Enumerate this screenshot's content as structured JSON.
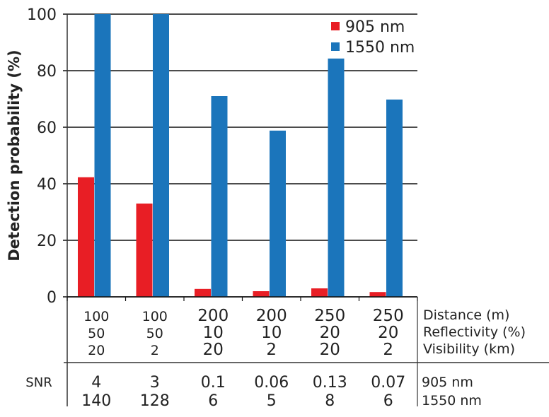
{
  "chart_data": {
    "type": "bar",
    "ylabel": "Detection probability (%)",
    "ylim": [
      0,
      100
    ],
    "yticks": [
      "0",
      "20",
      "40",
      "60",
      "80",
      "100"
    ],
    "grid": true,
    "legend_position": "top-right",
    "categories": [
      {
        "distance": "100",
        "reflectivity": "50",
        "visibility": "20"
      },
      {
        "distance": "100",
        "reflectivity": "50",
        "visibility": "2"
      },
      {
        "distance": "200",
        "reflectivity": "10",
        "visibility": "20"
      },
      {
        "distance": "200",
        "reflectivity": "10",
        "visibility": "2"
      },
      {
        "distance": "250",
        "reflectivity": "20",
        "visibility": "20"
      },
      {
        "distance": "250",
        "reflectivity": "20",
        "visibility": "2"
      }
    ],
    "row_labels": {
      "distance": "Distance (m)",
      "reflectivity": "Reflectivity (%)",
      "visibility": "Visibility (km)"
    },
    "series": [
      {
        "name": "905 nm",
        "color": "#e81e25",
        "values": [
          42.3,
          33,
          2.8,
          2,
          3,
          1.7
        ]
      },
      {
        "name": "1550 nm",
        "color": "#1b75bb",
        "values": [
          100,
          100,
          71,
          58.8,
          84.3,
          69.8
        ]
      }
    ],
    "snr": {
      "label": "SNR",
      "rows": [
        {
          "label": "905 nm",
          "values": [
            "4",
            "3",
            "0.1",
            "0.06",
            "0.13",
            "0.07"
          ]
        },
        {
          "label": "1550 nm",
          "values": [
            "140",
            "128",
            "6",
            "5",
            "8",
            "6"
          ]
        }
      ]
    }
  }
}
